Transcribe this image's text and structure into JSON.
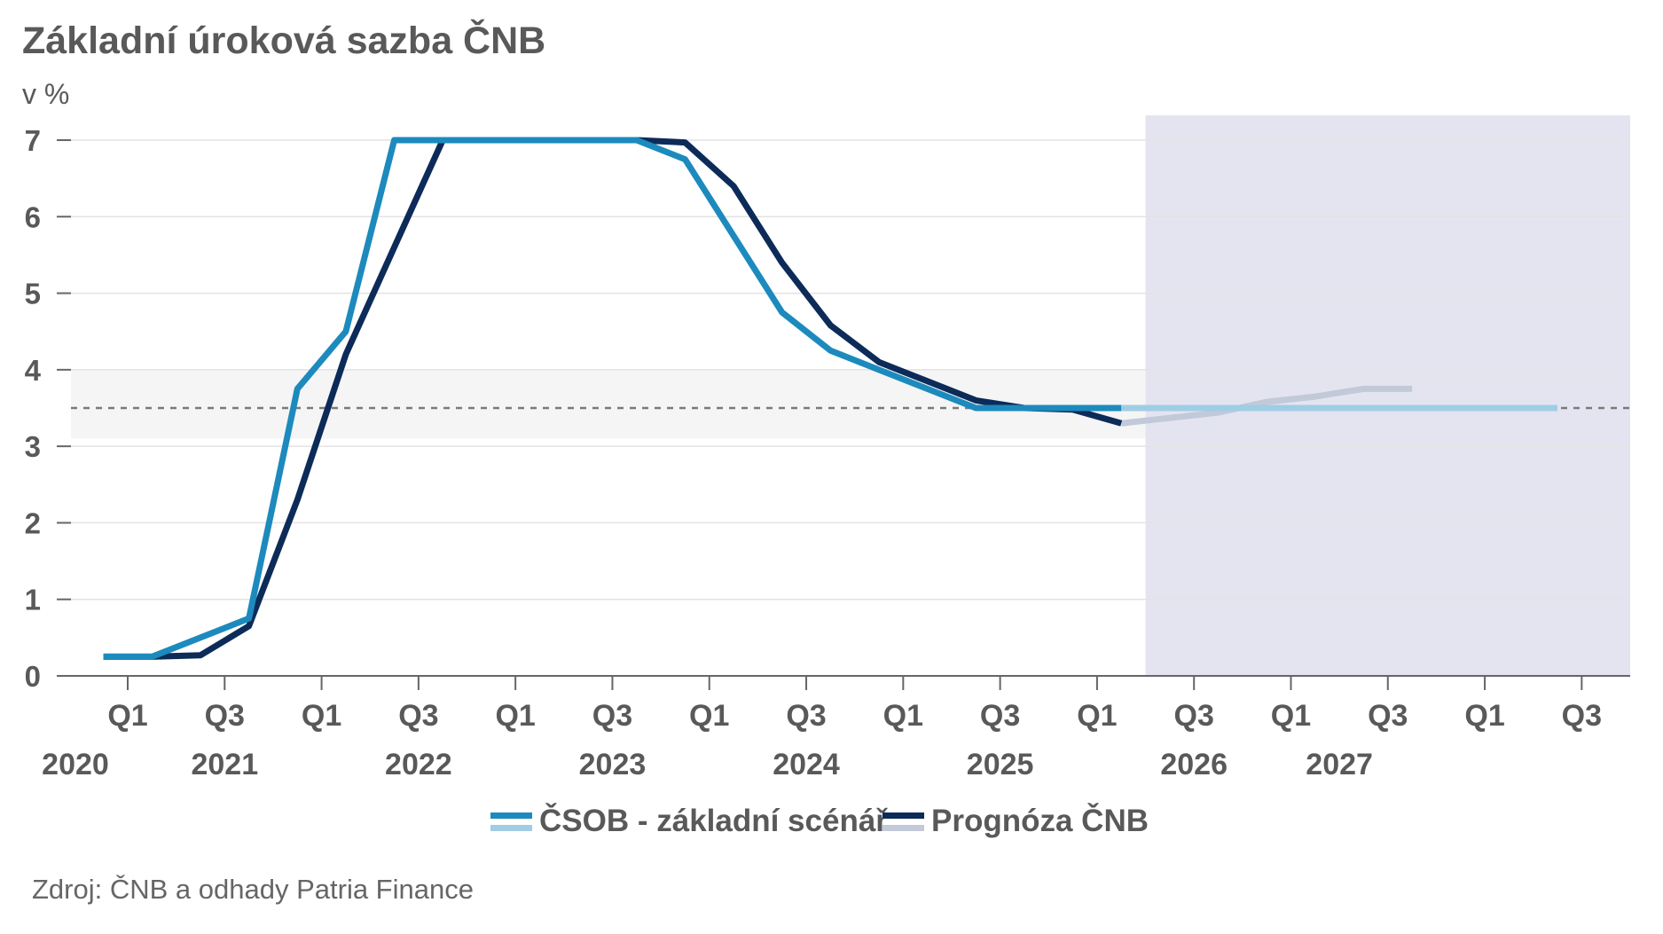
{
  "chart_data": {
    "type": "line",
    "title": "Základní úroková sazba ČNB",
    "ylabel": "v %",
    "ylim": [
      0,
      7
    ],
    "yticks": [
      "0",
      "1",
      "2",
      "3",
      "4",
      "5",
      "6",
      "7"
    ],
    "xlim": [
      2020.0,
      2027.75
    ],
    "quarter_ticks": [
      {
        "label": "Q1",
        "x": 2020.0
      },
      {
        "label": "Q3",
        "x": 2020.5
      },
      {
        "label": "Q1",
        "x": 2021.0
      },
      {
        "label": "Q3",
        "x": 2021.5
      },
      {
        "label": "Q1",
        "x": 2022.0
      },
      {
        "label": "Q3",
        "x": 2022.5
      },
      {
        "label": "Q1",
        "x": 2023.0
      },
      {
        "label": "Q3",
        "x": 2023.5
      },
      {
        "label": "Q1",
        "x": 2024.0
      },
      {
        "label": "Q3",
        "x": 2024.5
      },
      {
        "label": "Q1",
        "x": 2025.0
      },
      {
        "label": "Q3",
        "x": 2025.5
      },
      {
        "label": "Q1",
        "x": 2026.0
      },
      {
        "label": "Q3",
        "x": 2026.5
      },
      {
        "label": "Q1",
        "x": 2027.0
      },
      {
        "label": "Q3",
        "x": 2027.5
      }
    ],
    "year_labels": [
      {
        "label": "2020",
        "x": 2019.73
      },
      {
        "label": "2021",
        "x": 2020.5
      },
      {
        "label": "2022",
        "x": 2021.5
      },
      {
        "label": "2023",
        "x": 2022.5
      },
      {
        "label": "2024",
        "x": 2023.5
      },
      {
        "label": "2025",
        "x": 2024.5
      },
      {
        "label": "2026",
        "x": 2025.5
      },
      {
        "label": "2027",
        "x": 2026.25
      }
    ],
    "reference_line": {
      "value": 3.5,
      "band": [
        3.1,
        4.0
      ]
    },
    "forecast_region": {
      "from": 2025.25,
      "to": 2027.75
    },
    "series": [
      {
        "name": "ČSOB - základní scénář",
        "color": "#1d8abd",
        "forecast_color": "#9fcde4",
        "points": [
          [
            2019.875,
            0.25
          ],
          [
            2020.125,
            0.25
          ],
          [
            2020.625,
            0.75
          ],
          [
            2020.875,
            3.75
          ],
          [
            2021.125,
            4.5
          ],
          [
            2021.375,
            7.0
          ],
          [
            2021.625,
            7.0
          ],
          [
            2021.875,
            7.0
          ],
          [
            2022.125,
            7.0
          ],
          [
            2022.375,
            7.0
          ],
          [
            2022.625,
            7.0
          ],
          [
            2022.875,
            6.75
          ],
          [
            2023.125,
            5.75
          ],
          [
            2023.375,
            4.75
          ],
          [
            2023.625,
            4.25
          ],
          [
            2023.875,
            4.0
          ],
          [
            2024.125,
            3.75
          ],
          [
            2024.375,
            3.5
          ],
          [
            2024.625,
            3.5
          ],
          [
            2024.875,
            3.5
          ],
          [
            2025.125,
            3.5
          ],
          [
            2025.375,
            3.5
          ],
          [
            2025.625,
            3.5
          ],
          [
            2025.875,
            3.5
          ],
          [
            2026.125,
            3.5
          ],
          [
            2026.375,
            3.5
          ],
          [
            2026.625,
            3.5
          ],
          [
            2026.875,
            3.5
          ],
          [
            2027.125,
            3.5
          ],
          [
            2027.375,
            3.5
          ]
        ]
      },
      {
        "name": "Prognóza ČNB",
        "color": "#0c2b59",
        "forecast_color": "#c2c9d9",
        "points": [
          [
            2019.875,
            0.25
          ],
          [
            2020.125,
            0.25
          ],
          [
            2020.375,
            0.27
          ],
          [
            2020.625,
            0.65
          ],
          [
            2020.875,
            2.3
          ],
          [
            2021.125,
            4.2
          ],
          [
            2021.375,
            5.6
          ],
          [
            2021.625,
            7.0
          ],
          [
            2021.875,
            7.0
          ],
          [
            2022.125,
            7.0
          ],
          [
            2022.375,
            7.0
          ],
          [
            2022.625,
            7.0
          ],
          [
            2022.875,
            6.97
          ],
          [
            2023.125,
            6.4
          ],
          [
            2023.375,
            5.4
          ],
          [
            2023.625,
            4.58
          ],
          [
            2023.875,
            4.1
          ],
          [
            2024.125,
            3.85
          ],
          [
            2024.375,
            3.6
          ],
          [
            2024.625,
            3.5
          ],
          [
            2024.875,
            3.48
          ],
          [
            2025.125,
            3.3
          ],
          [
            2025.375,
            3.37
          ],
          [
            2025.625,
            3.44
          ],
          [
            2025.875,
            3.58
          ],
          [
            2026.125,
            3.65
          ],
          [
            2026.375,
            3.75
          ],
          [
            2026.625,
            3.75
          ]
        ]
      }
    ],
    "legend": [
      {
        "label": "ČSOB - základní scénář"
      },
      {
        "label": "Prognóza ČNB"
      }
    ],
    "source": "Zdroj: ČNB a odhady Patria Finance"
  }
}
